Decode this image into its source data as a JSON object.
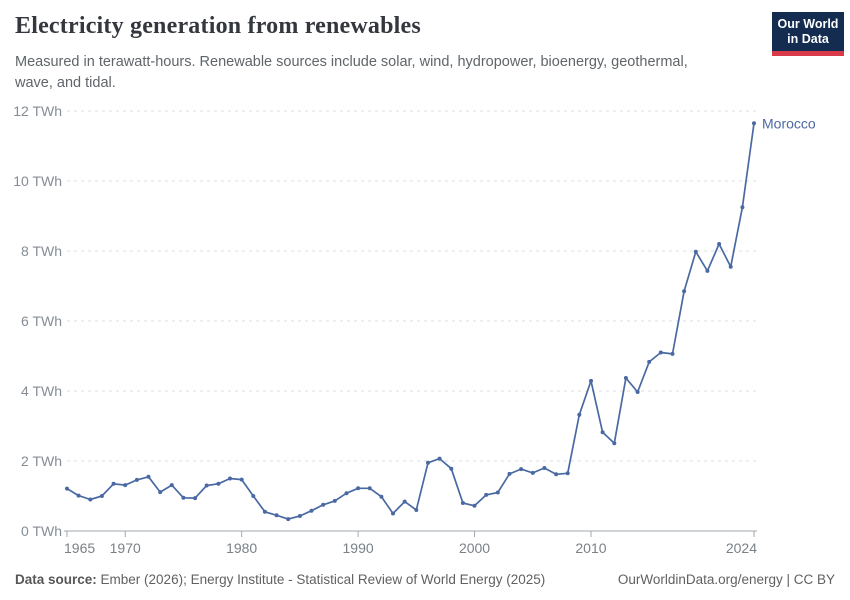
{
  "header": {
    "title": "Electricity generation from renewables",
    "subtitle": "Measured in terawatt-hours. Renewable sources include solar, wind, hydropower, bioenergy, geothermal, wave, and tidal."
  },
  "logo": {
    "line1": "Our World",
    "line2": "in Data",
    "bg_color": "#132c4f",
    "accent_color": "#d93a4a"
  },
  "footer": {
    "source_label": "Data source:",
    "source_text": " Ember (2026); Energy Institute - Statistical Review of World Energy (2025)",
    "credit": "OurWorldinData.org/energy | CC BY"
  },
  "chart_data": {
    "type": "line",
    "title": "Electricity generation from renewables",
    "unit": "TWh",
    "xlabel": "",
    "ylabel": "",
    "xlim": [
      1965,
      2024
    ],
    "ylim": [
      0,
      12
    ],
    "grid": "dashed-horizontal",
    "legend_position": "end-of-line-label",
    "line_color": "#4a69a3",
    "x": [
      1965,
      1966,
      1967,
      1968,
      1969,
      1970,
      1971,
      1972,
      1973,
      1974,
      1975,
      1976,
      1977,
      1978,
      1979,
      1980,
      1981,
      1982,
      1983,
      1984,
      1985,
      1986,
      1987,
      1988,
      1989,
      1990,
      1991,
      1992,
      1993,
      1994,
      1995,
      1996,
      1997,
      1998,
      1999,
      2000,
      2001,
      2002,
      2003,
      2004,
      2005,
      2006,
      2007,
      2008,
      2009,
      2010,
      2011,
      2012,
      2013,
      2014,
      2015,
      2016,
      2017,
      2018,
      2019,
      2020,
      2021,
      2022,
      2023,
      2024
    ],
    "series": [
      {
        "name": "Morocco",
        "values": [
          1.21,
          1.01,
          0.9,
          1.0,
          1.35,
          1.31,
          1.46,
          1.55,
          1.11,
          1.31,
          0.95,
          0.94,
          1.3,
          1.35,
          1.5,
          1.47,
          1.0,
          0.55,
          0.45,
          0.34,
          0.43,
          0.58,
          0.75,
          0.86,
          1.08,
          1.22,
          1.22,
          0.98,
          0.5,
          0.84,
          0.6,
          1.95,
          2.07,
          1.78,
          0.8,
          0.72,
          1.03,
          1.1,
          1.63,
          1.77,
          1.66,
          1.8,
          1.62,
          1.65,
          3.32,
          4.29,
          2.82,
          2.51,
          4.37,
          3.97,
          4.83,
          5.1,
          5.06,
          6.85,
          7.98,
          7.43,
          8.2,
          7.55,
          9.25,
          11.65
        ]
      }
    ],
    "yticks": [
      {
        "value": 0,
        "label": "0 TWh"
      },
      {
        "value": 2,
        "label": "2 TWh"
      },
      {
        "value": 4,
        "label": "4 TWh"
      },
      {
        "value": 6,
        "label": "6 TWh"
      },
      {
        "value": 8,
        "label": "8 TWh"
      },
      {
        "value": 10,
        "label": "10 TWh"
      },
      {
        "value": 12,
        "label": "12 TWh"
      }
    ],
    "xticks": [
      {
        "value": 1965,
        "label": "1965"
      },
      {
        "value": 1970,
        "label": "1970"
      },
      {
        "value": 1980,
        "label": "1980"
      },
      {
        "value": 1990,
        "label": "1990"
      },
      {
        "value": 2000,
        "label": "2000"
      },
      {
        "value": 2010,
        "label": "2010"
      },
      {
        "value": 2024,
        "label": "2024"
      }
    ]
  }
}
